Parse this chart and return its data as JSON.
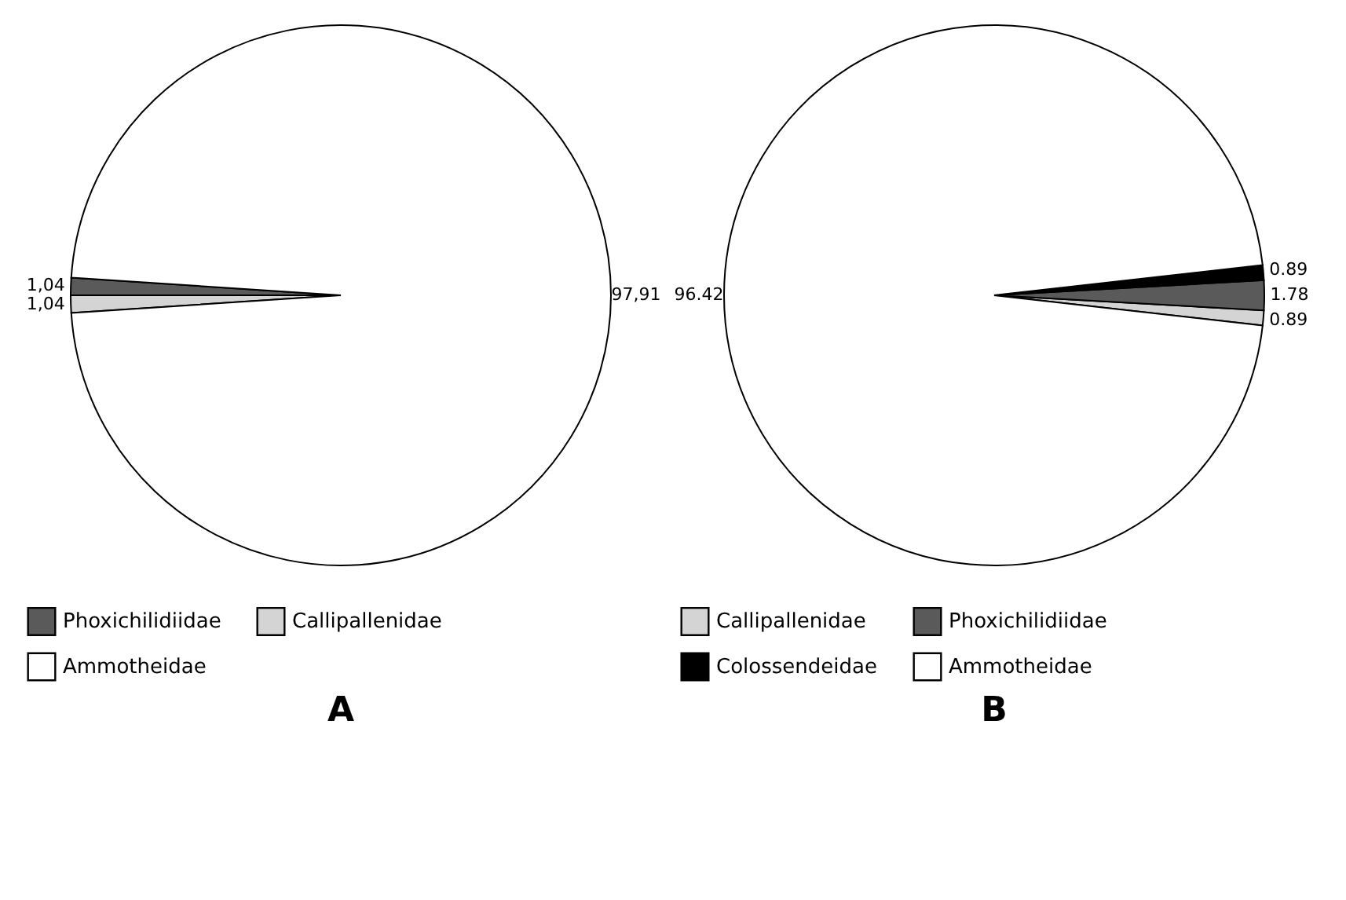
{
  "chart_data": [
    {
      "type": "pie",
      "title": "A",
      "categories": [
        "Phoxichilidiidae",
        "Callipallenidae",
        "Ammotheidae"
      ],
      "values": [
        1.04,
        1.04,
        97.91
      ],
      "colors": [
        "#5a5a5a",
        "#d4d4d4",
        "#ffffff"
      ],
      "value_labels": [
        "1,04",
        "1,04",
        "97,91"
      ],
      "legend": "bottom"
    },
    {
      "type": "pie",
      "title": "B",
      "categories": [
        "Callipallenidae",
        "Phoxichilidiidae",
        "Colossendeidae",
        "Ammotheidae"
      ],
      "values": [
        0.89,
        1.78,
        0.89,
        96.42
      ],
      "colors": [
        "#d4d4d4",
        "#5a5a5a",
        "#000000",
        "#ffffff"
      ],
      "value_labels": [
        "0.89",
        "1.78",
        "0.89",
        "96.42"
      ],
      "legend": "bottom"
    }
  ]
}
